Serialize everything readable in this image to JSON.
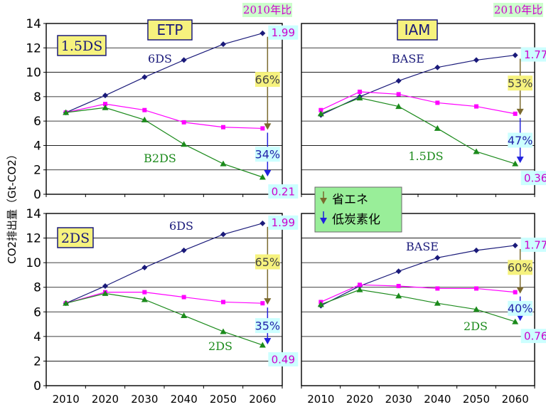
{
  "y_axis_label": "CO2排出量（Gt-CO2）",
  "legend": {
    "items": [
      {
        "label": "省エネ",
        "color": "#7b6a2e"
      },
      {
        "label": "低炭素化",
        "color": "#2222dd"
      }
    ]
  },
  "colors": {
    "top_series": "#1a1a7a",
    "mid_series": "#ff00ff",
    "low_series": "#1b8a1b",
    "box_fill": "#f6f27e",
    "pct_fill": "#f6f27e",
    "end_label_fill": "#ccffff",
    "end_label_text": "#cc00cc",
    "header_fill": "#ccffcc",
    "legend_fill": "#99ee99"
  },
  "chart_data": [
    {
      "type": "line",
      "panel": "top-left",
      "title": "ETP",
      "ratio_note": "2010年比",
      "scenario": "1.5DS",
      "x": [
        2010,
        2020,
        2030,
        2040,
        2050,
        2060
      ],
      "ylim": [
        0,
        14
      ],
      "yticks": [
        0,
        2,
        4,
        6,
        8,
        10,
        12,
        14
      ],
      "grid": true,
      "series": [
        {
          "name": "6DS",
          "role": "top",
          "marker": "diamond",
          "values": [
            6.7,
            8.1,
            9.6,
            11.0,
            12.3,
            13.2
          ]
        },
        {
          "role": "mid",
          "marker": "square",
          "values": [
            6.7,
            7.4,
            6.9,
            5.9,
            5.5,
            5.4
          ]
        },
        {
          "name": "B2DS",
          "role": "low",
          "marker": "triangle",
          "values": [
            6.7,
            7.1,
            6.1,
            4.1,
            2.5,
            1.4
          ]
        }
      ],
      "end_labels": {
        "top": "1.99",
        "low": "0.21"
      },
      "percent_labels": {
        "efficiency": "66%",
        "decarbonization": "34%"
      }
    },
    {
      "type": "line",
      "panel": "top-right",
      "title": "IAM",
      "ratio_note": "2010年比",
      "x": [
        2010,
        2020,
        2030,
        2040,
        2050,
        2060
      ],
      "ylim": [
        0,
        14
      ],
      "grid": true,
      "series": [
        {
          "name": "BASE",
          "role": "top",
          "marker": "diamond",
          "values": [
            6.5,
            8.0,
            9.3,
            10.4,
            11.0,
            11.4
          ]
        },
        {
          "role": "mid",
          "marker": "square",
          "values": [
            6.9,
            8.4,
            8.2,
            7.5,
            7.2,
            6.6
          ]
        },
        {
          "name": "1.5DS",
          "role": "low",
          "marker": "triangle",
          "values": [
            6.6,
            7.9,
            7.2,
            5.4,
            3.5,
            2.5
          ]
        }
      ],
      "end_labels": {
        "top": "1.77",
        "low": "0.36"
      },
      "percent_labels": {
        "efficiency": "53%",
        "decarbonization": "47%"
      }
    },
    {
      "type": "line",
      "panel": "bottom-left",
      "scenario": "2DS",
      "x": [
        2010,
        2020,
        2030,
        2040,
        2050,
        2060
      ],
      "ylim": [
        0,
        14
      ],
      "yticks": [
        0,
        2,
        4,
        6,
        8,
        10,
        12,
        14
      ],
      "grid": true,
      "series": [
        {
          "name": "6DS",
          "role": "top",
          "marker": "diamond",
          "values": [
            6.7,
            8.1,
            9.6,
            11.0,
            12.3,
            13.2
          ]
        },
        {
          "role": "mid",
          "marker": "square",
          "values": [
            6.7,
            7.6,
            7.6,
            7.2,
            6.8,
            6.7
          ]
        },
        {
          "name": "2DS",
          "role": "low",
          "marker": "triangle",
          "values": [
            6.7,
            7.5,
            7.0,
            5.7,
            4.4,
            3.3
          ]
        }
      ],
      "end_labels": {
        "top": "1.99",
        "low": "0.49"
      },
      "percent_labels": {
        "efficiency": "65%",
        "decarbonization": "35%"
      }
    },
    {
      "type": "line",
      "panel": "bottom-right",
      "x": [
        2010,
        2020,
        2030,
        2040,
        2050,
        2060
      ],
      "ylim": [
        0,
        14
      ],
      "grid": true,
      "series": [
        {
          "name": "BASE",
          "role": "top",
          "marker": "diamond",
          "values": [
            6.5,
            8.1,
            9.3,
            10.4,
            11.0,
            11.4
          ]
        },
        {
          "role": "mid",
          "marker": "square",
          "values": [
            6.8,
            8.2,
            8.1,
            7.9,
            7.9,
            7.6
          ]
        },
        {
          "name": "2DS",
          "role": "low",
          "marker": "triangle",
          "values": [
            6.6,
            7.8,
            7.3,
            6.7,
            6.2,
            5.2
          ]
        }
      ],
      "end_labels": {
        "top": "1.77",
        "low": "0.76"
      },
      "percent_labels": {
        "efficiency": "60%",
        "decarbonization": "40%"
      }
    }
  ]
}
